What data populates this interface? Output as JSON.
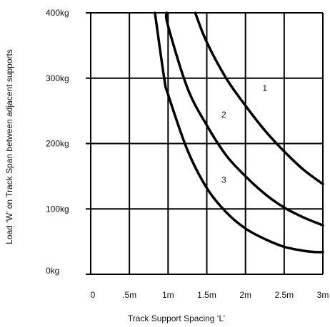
{
  "chart_data": {
    "type": "line",
    "xlabel": "Track Support Spacing ‘L’",
    "ylabel": "Load ‘W’ on Track Span between adjacent supports",
    "xlim": [
      0,
      3
    ],
    "ylim": [
      0,
      400
    ],
    "x_ticks": [
      {
        "value": 0,
        "label": "0"
      },
      {
        "value": 0.5,
        "label": ".5m"
      },
      {
        "value": 1,
        "label": "1m"
      },
      {
        "value": 1.5,
        "label": "1.5m"
      },
      {
        "value": 2,
        "label": "2m"
      },
      {
        "value": 2.5,
        "label": "2.5m"
      },
      {
        "value": 3,
        "label": "3m"
      }
    ],
    "y_ticks": [
      {
        "value": 0,
        "label": "0kg"
      },
      {
        "value": 100,
        "label": "100kg"
      },
      {
        "value": 200,
        "label": "200kg"
      },
      {
        "value": 300,
        "label": "300kg"
      },
      {
        "value": 400,
        "label": "400kg"
      }
    ],
    "grid": true,
    "series": [
      {
        "name": "1",
        "label_at": [
          2.25,
          280
        ],
        "points": [
          [
            1.35,
            400
          ],
          [
            1.5,
            355
          ],
          [
            1.75,
            300
          ],
          [
            2.0,
            258
          ],
          [
            2.25,
            220
          ],
          [
            2.5,
            188
          ],
          [
            2.75,
            160
          ],
          [
            3.0,
            138
          ]
        ]
      },
      {
        "name": "2",
        "label_at": [
          1.72,
          240
        ],
        "points": [
          [
            0.98,
            400
          ],
          [
            1.0,
            380
          ],
          [
            1.25,
            285
          ],
          [
            1.5,
            228
          ],
          [
            1.75,
            182
          ],
          [
            2.0,
            150
          ],
          [
            2.25,
            123
          ],
          [
            2.5,
            102
          ],
          [
            2.75,
            87
          ],
          [
            3.0,
            75
          ]
        ]
      },
      {
        "name": "3",
        "label_at": [
          1.72,
          140
        ],
        "points": [
          [
            0.83,
            400
          ],
          [
            0.95,
            300
          ],
          [
            1.0,
            275
          ],
          [
            1.25,
            190
          ],
          [
            1.5,
            132
          ],
          [
            1.75,
            95
          ],
          [
            2.0,
            70
          ],
          [
            2.25,
            54
          ],
          [
            2.5,
            42
          ],
          [
            2.75,
            36
          ],
          [
            2.9,
            34
          ],
          [
            3.0,
            34
          ]
        ]
      }
    ]
  }
}
